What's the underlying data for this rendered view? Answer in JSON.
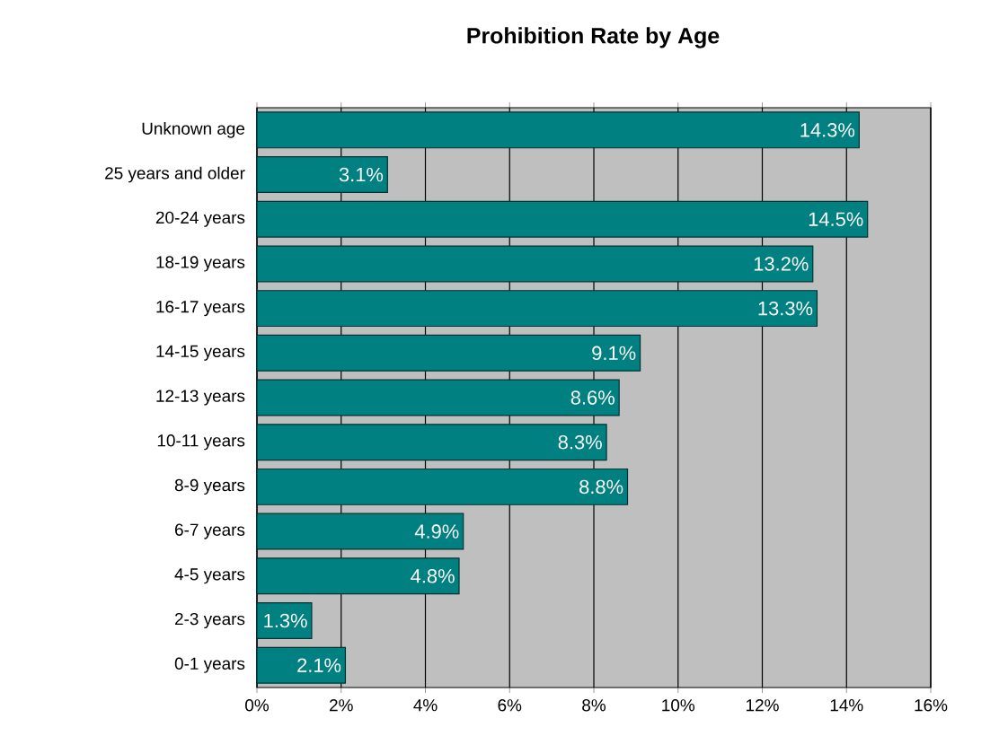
{
  "chart_data": {
    "type": "bar",
    "orientation": "horizontal",
    "title": "Prohibition Rate by Age",
    "categories": [
      "Unknown age",
      "25 years and older",
      "20-24 years",
      "18-19 years",
      "16-17 years",
      "14-15 years",
      "12-13 years",
      "10-11 years",
      "8-9 years",
      "6-7 years",
      "4-5 years",
      "2-3 years",
      "0-1 years"
    ],
    "values": [
      14.3,
      3.1,
      14.5,
      13.2,
      13.3,
      9.1,
      8.6,
      8.3,
      8.8,
      4.9,
      4.8,
      1.3,
      2.1
    ],
    "value_labels": [
      "14.3%",
      "3.1%",
      "14.5%",
      "13.2%",
      "13.3%",
      "9.1%",
      "8.6%",
      "8.3%",
      "8.8%",
      "4.9%",
      "4.8%",
      "1.3%",
      "2.1%"
    ],
    "color": "#008080",
    "xlim": [
      0,
      16
    ],
    "xticks": [
      {
        "value": 0,
        "label": "0%"
      },
      {
        "value": 2,
        "label": "2%"
      },
      {
        "value": 4,
        "label": "4%"
      },
      {
        "value": 6,
        "label": "6%"
      },
      {
        "value": 8,
        "label": "8%"
      },
      {
        "value": 10,
        "label": "10%"
      },
      {
        "value": 12,
        "label": "12%"
      },
      {
        "value": 14,
        "label": "14%"
      },
      {
        "value": 16,
        "label": "16%"
      }
    ],
    "grid": "x"
  }
}
